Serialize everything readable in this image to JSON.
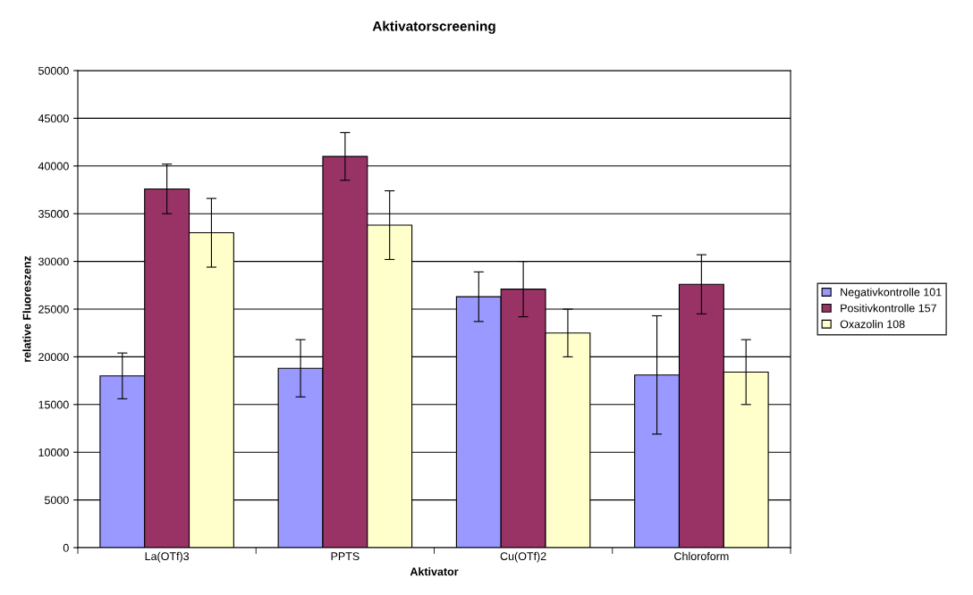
{
  "chart_data": {
    "type": "bar",
    "title": "Aktivatorscreening",
    "xlabel": "Aktivator",
    "ylabel": "relative Fluoreszenz",
    "categories": [
      "La(OTf)3",
      "PPTS",
      "Cu(OTf)2",
      "Chloroform"
    ],
    "series": [
      {
        "name": "Negativkontrolle 101",
        "color": "#9999ff",
        "values": [
          18000,
          18800,
          26300,
          18100
        ],
        "errors": [
          2400,
          3000,
          2600,
          6200
        ]
      },
      {
        "name": "Positivkontrolle 157",
        "color": "#993366",
        "values": [
          37600,
          41000,
          27100,
          27600
        ],
        "errors": [
          2600,
          2500,
          2900,
          3100
        ]
      },
      {
        "name": "Oxazolin 108",
        "color": "#ffffcc",
        "values": [
          33000,
          33800,
          22500,
          18400
        ],
        "errors": [
          3600,
          3600,
          2500,
          3400
        ]
      }
    ],
    "ylim": [
      0,
      50000
    ],
    "yticks": [
      0,
      5000,
      10000,
      15000,
      20000,
      25000,
      30000,
      35000,
      40000,
      45000,
      50000
    ],
    "grid": "y",
    "legend": "right"
  }
}
